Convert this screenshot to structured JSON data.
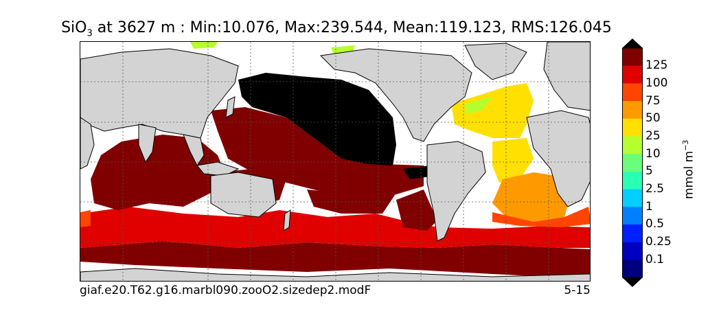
{
  "title": {
    "species": "SiO",
    "subscript": "3",
    "rest": " at 3627 m : Min:10.076, Max:239.544, Mean:119.123, RMS:126.045"
  },
  "footer": {
    "case_name": "giaf.e20.T62.g16.marbl090.zooO2.sizedep2.modF",
    "years": "5-15"
  },
  "colorbar": {
    "unit_text": "mmol m",
    "unit_exp": "−3",
    "levels": [
      {
        "label": "125",
        "color": "#800000"
      },
      {
        "label": "100",
        "color": "#e00000"
      },
      {
        "label": "75",
        "color": "#ff4500"
      },
      {
        "label": "50",
        "color": "#ff9900"
      },
      {
        "label": "25",
        "color": "#ffe000"
      },
      {
        "label": "10",
        "color": "#b5ff2e"
      },
      {
        "label": "5",
        "color": "#6aff7a"
      },
      {
        "label": "2.5",
        "color": "#2affb6"
      },
      {
        "label": "1",
        "color": "#00cfff"
      },
      {
        "label": "0.5",
        "color": "#0080ff"
      },
      {
        "label": "0.25",
        "color": "#0020ff"
      },
      {
        "label": "0.1",
        "color": "#0000c0"
      }
    ],
    "bottom_color": "#00007f",
    "under_color": "#000000",
    "over_color": "#000000"
  },
  "map": {
    "land_color": "#d3d3d3",
    "missing_color": "#ffffff",
    "grid": "dotted",
    "projection": "equirectangular"
  }
}
